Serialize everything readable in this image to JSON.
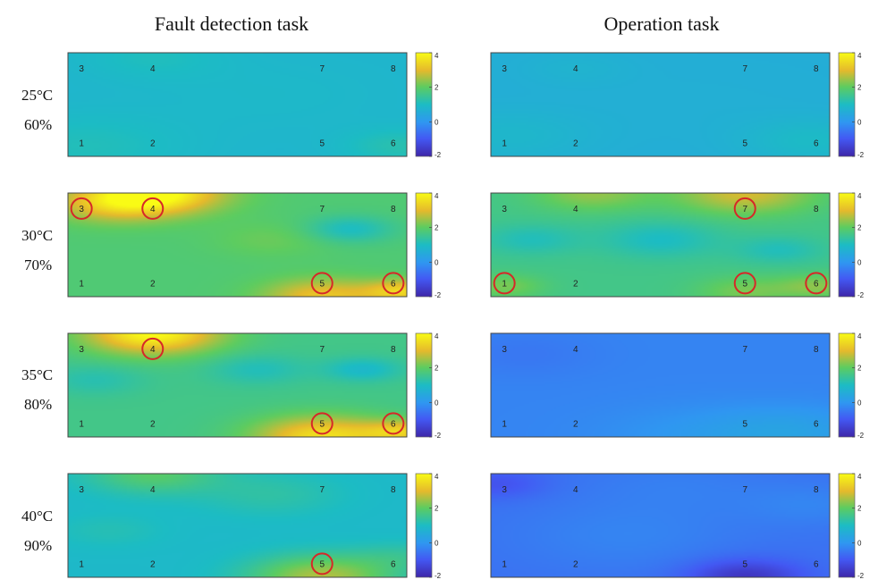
{
  "colors": {
    "colormap": [
      "#3e26a8",
      "#4358f3",
      "#2f97f1",
      "#1cbcc4",
      "#5dcc60",
      "#e5b92c",
      "#f9fb15"
    ],
    "highlight_circle": "#d62828",
    "frame": "#444444"
  },
  "chart_data": {
    "type": "heatmap",
    "title": "",
    "columns": [
      "Fault detection task",
      "Operation task"
    ],
    "rows": [
      {
        "temperature": "25°C",
        "humidity": "60%"
      },
      {
        "temperature": "30°C",
        "humidity": "70%"
      },
      {
        "temperature": "35°C",
        "humidity": "80%"
      },
      {
        "temperature": "40°C",
        "humidity": "90%"
      }
    ],
    "sensors": [
      {
        "label": "1",
        "x": 0.04,
        "y": 0.87
      },
      {
        "label": "2",
        "x": 0.25,
        "y": 0.87
      },
      {
        "label": "3",
        "x": 0.04,
        "y": 0.15
      },
      {
        "label": "4",
        "x": 0.25,
        "y": 0.15
      },
      {
        "label": "5",
        "x": 0.75,
        "y": 0.87
      },
      {
        "label": "6",
        "x": 0.96,
        "y": 0.87
      },
      {
        "label": "7",
        "x": 0.75,
        "y": 0.15
      },
      {
        "label": "8",
        "x": 0.96,
        "y": 0.15
      }
    ],
    "colorbar": {
      "min": -2,
      "max": 4,
      "ticks": [
        4,
        2,
        0,
        -2
      ]
    },
    "panels": [
      {
        "column": 0,
        "row": 0,
        "base": 0.8,
        "blobs": [
          [
            0.05,
            0.9,
            0.22,
            0.3
          ],
          [
            0.25,
            0.05,
            0.15,
            0.25
          ],
          [
            0.98,
            0.9,
            0.12,
            0.4
          ],
          [
            0.6,
            0.4,
            0.25,
            0.1
          ]
        ],
        "highlighted": []
      },
      {
        "column": 0,
        "row": 1,
        "base": 1.8,
        "blobs": [
          [
            0.25,
            0.0,
            0.14,
            2.4
          ],
          [
            0.12,
            0.12,
            0.12,
            0.9
          ],
          [
            0.75,
            1.0,
            0.12,
            1.4
          ],
          [
            0.99,
            0.95,
            0.08,
            1.5
          ],
          [
            0.83,
            0.35,
            0.09,
            -0.8
          ],
          [
            0.6,
            0.45,
            0.12,
            0.3
          ]
        ],
        "highlighted": [
          "3",
          "4",
          "5",
          "6"
        ]
      },
      {
        "column": 0,
        "row": 2,
        "base": 1.6,
        "blobs": [
          [
            0.25,
            0.0,
            0.14,
            2.4
          ],
          [
            0.75,
            1.0,
            0.14,
            2.0
          ],
          [
            0.99,
            0.95,
            0.08,
            1.4
          ],
          [
            0.56,
            0.35,
            0.1,
            -0.5
          ],
          [
            0.87,
            0.35,
            0.08,
            -0.7
          ],
          [
            0.08,
            0.45,
            0.1,
            -0.4
          ]
        ],
        "highlighted": [
          "4",
          "5",
          "6"
        ]
      },
      {
        "column": 0,
        "row": 3,
        "base": 0.9,
        "blobs": [
          [
            0.25,
            0.0,
            0.14,
            1.0
          ],
          [
            0.75,
            1.0,
            0.15,
            1.7
          ],
          [
            0.99,
            0.8,
            0.1,
            0.4
          ],
          [
            0.6,
            0.2,
            0.15,
            0.4
          ],
          [
            0.12,
            0.55,
            0.12,
            0.25
          ]
        ],
        "highlighted": [
          "5"
        ]
      },
      {
        "column": 1,
        "row": 0,
        "base": 0.6,
        "blobs": [
          [
            0.05,
            0.8,
            0.18,
            0.25
          ],
          [
            0.25,
            0.15,
            0.12,
            0.15
          ],
          [
            0.95,
            0.85,
            0.15,
            0.35
          ],
          [
            0.6,
            0.5,
            0.25,
            0.05
          ]
        ],
        "highlighted": []
      },
      {
        "column": 1,
        "row": 1,
        "base": 1.6,
        "blobs": [
          [
            0.75,
            0.0,
            0.14,
            1.3
          ],
          [
            0.3,
            0.0,
            0.12,
            0.8
          ],
          [
            0.12,
            0.45,
            0.1,
            -0.5
          ],
          [
            0.5,
            0.45,
            0.12,
            -0.6
          ],
          [
            0.85,
            0.55,
            0.09,
            -0.5
          ],
          [
            0.04,
            0.9,
            0.08,
            0.6
          ],
          [
            0.75,
            0.95,
            0.1,
            0.6
          ],
          [
            0.96,
            0.9,
            0.08,
            0.7
          ]
        ],
        "highlighted": [
          "1",
          "5",
          "6",
          "7"
        ]
      },
      {
        "column": 1,
        "row": 2,
        "base": -0.3,
        "blobs": [
          [
            0.9,
            0.95,
            0.18,
            0.5
          ],
          [
            0.6,
            1.0,
            0.22,
            0.3
          ],
          [
            0.1,
            0.2,
            0.15,
            -0.2
          ]
        ],
        "highlighted": []
      },
      {
        "column": 1,
        "row": 3,
        "base": -0.6,
        "blobs": [
          [
            0.75,
            1.0,
            0.12,
            -1.1
          ],
          [
            0.02,
            0.1,
            0.1,
            -0.5
          ],
          [
            0.4,
            0.6,
            0.25,
            0.3
          ],
          [
            0.95,
            0.3,
            0.15,
            0.3
          ],
          [
            0.55,
            0.1,
            0.2,
            0.2
          ]
        ],
        "highlighted": []
      }
    ]
  }
}
